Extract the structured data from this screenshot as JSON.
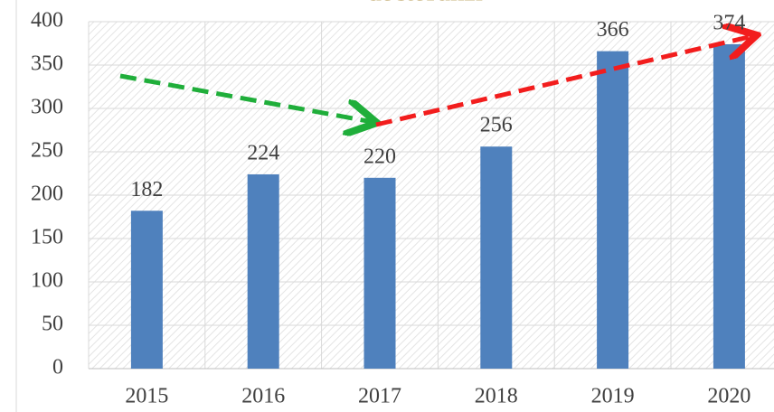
{
  "chart_data": {
    "type": "bar",
    "title": "doctoranzi",
    "categories": [
      "2015",
      "2016",
      "2017",
      "2018",
      "2019",
      "2020"
    ],
    "values": [
      182,
      224,
      220,
      256,
      366,
      374
    ],
    "color": "#4f81bd",
    "ylim": [
      0,
      400
    ],
    "yticks": [
      0,
      50,
      100,
      150,
      200,
      250,
      300,
      350,
      400
    ],
    "grid": true,
    "data_labels": true
  }
}
